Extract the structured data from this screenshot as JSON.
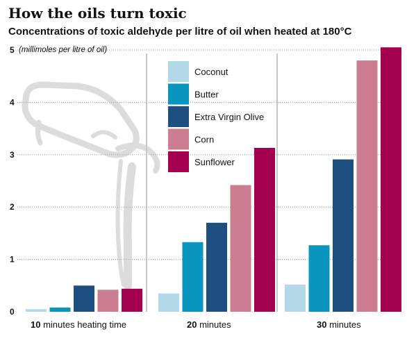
{
  "colors": {
    "background": "#ffffff",
    "gridline": "#999999",
    "divider": "#c8c8c8",
    "pour_graphic": "#dcdcdc"
  },
  "chart_data": {
    "type": "bar",
    "title": "How the oils turn toxic",
    "subtitle": "Concentrations of toxic aldehyde per litre of oil when heated at 180°C",
    "ylabel": "(millimoles per litre of oil)",
    "ylim": [
      0,
      5
    ],
    "yticks": [
      "0",
      "1",
      "2",
      "3",
      "4",
      "5"
    ],
    "grid": true,
    "legend_position": "top-left",
    "categories": [
      {
        "strong": "10",
        "rest": " minutes heating time"
      },
      {
        "strong": "20",
        "rest": " minutes"
      },
      {
        "strong": "30",
        "rest": " minutes"
      }
    ],
    "series": [
      {
        "name": "Coconut",
        "color": "#b3d9e8",
        "values": [
          0.05,
          0.35,
          0.52
        ]
      },
      {
        "name": "Butter",
        "color": "#0896be",
        "values": [
          0.08,
          1.33,
          1.27
        ]
      },
      {
        "name": "Extra Virgin Olive",
        "color": "#1c4e80",
        "values": [
          0.5,
          1.7,
          2.91
        ]
      },
      {
        "name": "Corn",
        "color": "#cc7d91",
        "values": [
          0.42,
          2.42,
          4.8
        ]
      },
      {
        "name": "Sunflower",
        "color": "#a3004f",
        "values": [
          0.44,
          3.13,
          5.05
        ]
      }
    ]
  }
}
